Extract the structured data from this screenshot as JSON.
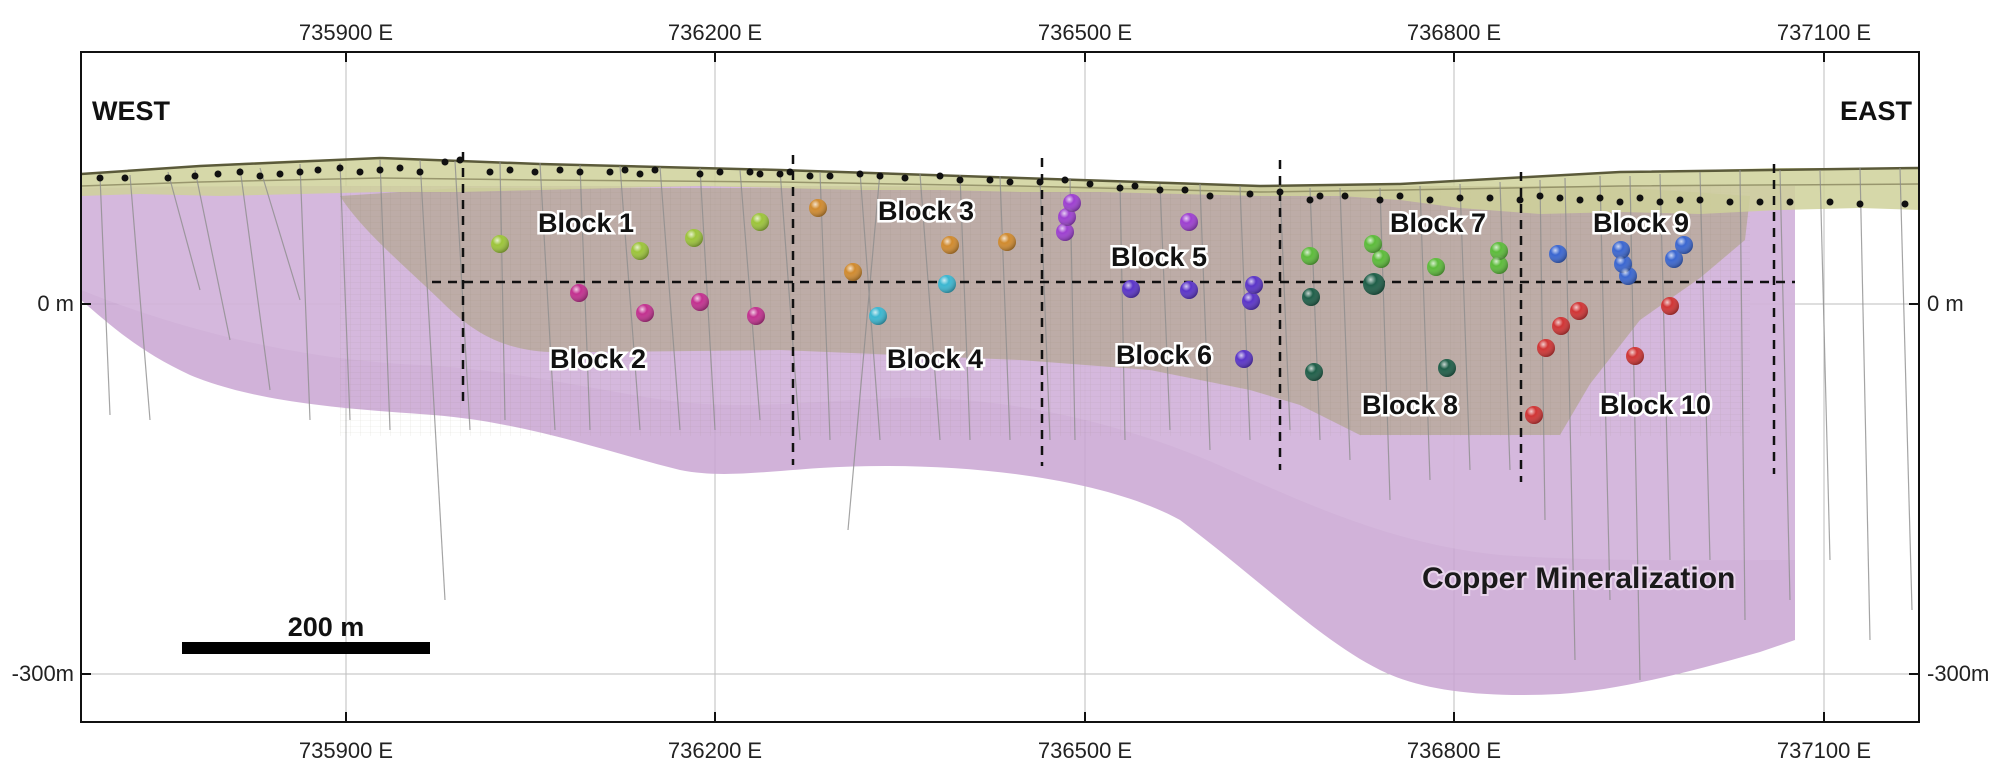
{
  "figure": {
    "direction_left": "WEST",
    "direction_right": "EAST",
    "mineralization_label": "Copper Mineralization",
    "scale_bar_label": "200 m"
  },
  "axes": {
    "easting_ticks": [
      "735900 E",
      "736200 E",
      "736500 E",
      "736800 E",
      "737100 E"
    ],
    "easting_values": [
      735900,
      736200,
      736500,
      736800,
      737100
    ],
    "elevation_ticks": [
      "0 m",
      "-300m"
    ],
    "elevation_values": [
      0,
      -300
    ]
  },
  "blocks": [
    {
      "label": "Block 1",
      "color": "#9cc43a"
    },
    {
      "label": "Block 2",
      "color": "#c2308f"
    },
    {
      "label": "Block 3",
      "color": "#d08a2e"
    },
    {
      "label": "Block 4",
      "color": "#3ab6d0"
    },
    {
      "label": "Block 5",
      "color": "#9d3fd0"
    },
    {
      "label": "Block 6",
      "color": "#5a34c8"
    },
    {
      "label": "Block 7",
      "color": "#5cbb3a"
    },
    {
      "label": "Block 8",
      "color": "#1e5e48"
    },
    {
      "label": "Block 9",
      "color": "#3a66d0"
    },
    {
      "label": "Block 10",
      "color": "#d03434"
    }
  ],
  "colors": {
    "mineralization": "#c9a5d2",
    "block_zone": "#b4ad86",
    "surface": "#cfd19a",
    "frame": "#111111"
  }
}
